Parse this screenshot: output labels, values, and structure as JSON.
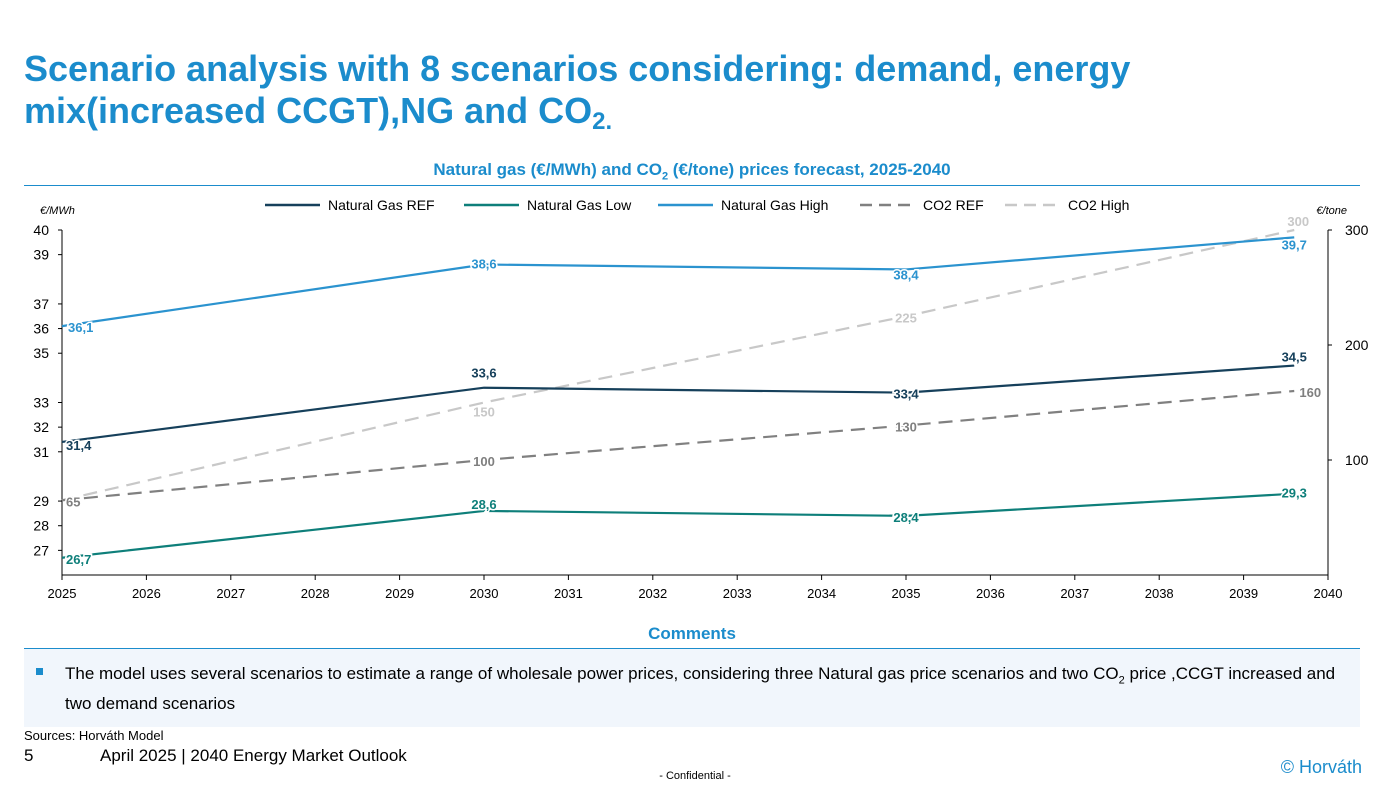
{
  "title": {
    "main": "Scenario analysis with 8 scenarios considering: demand, energy mix(increased CCGT),NG and CO",
    "sub": "2.",
    "chart_title_pre": "Natural gas (€/MWh) and CO",
    "chart_title_sub": "2",
    "chart_title_post": " (€/tone) prices forecast, 2025-2040"
  },
  "chart_data": {
    "type": "line",
    "title": "Natural gas (€/MWh) and CO2 (€/tone) prices forecast, 2025-2040",
    "ylabel": "€/MWh",
    "y2label": "€/tone",
    "x": [
      2025,
      2026,
      2027,
      2028,
      2029,
      2030,
      2031,
      2032,
      2033,
      2034,
      2035,
      2036,
      2037,
      2038,
      2039,
      2040
    ],
    "ylim": [
      26,
      40
    ],
    "y2lim": [
      0,
      300
    ],
    "yticks": [
      27,
      28,
      29,
      31,
      32,
      33,
      35,
      36,
      37,
      39,
      40
    ],
    "y2ticks": [
      100,
      200,
      300
    ],
    "legend_position": "top",
    "grid": false,
    "series": [
      {
        "name": "Natural Gas REF",
        "axis": "left",
        "style": "solid",
        "color": "#16405b",
        "points": [
          [
            2025,
            31.4
          ],
          [
            2030,
            33.6
          ],
          [
            2035,
            33.4
          ],
          [
            2039.6,
            34.5
          ]
        ],
        "labels": [
          "31,4",
          "33,6",
          "33,4",
          "34,5"
        ]
      },
      {
        "name": "Natural Gas Low",
        "axis": "left",
        "style": "solid",
        "color": "#0e7f7a",
        "points": [
          [
            2025,
            26.7
          ],
          [
            2030,
            28.6
          ],
          [
            2035,
            28.4
          ],
          [
            2039.6,
            29.3
          ]
        ],
        "labels": [
          "26,7",
          "28,6",
          "28,4",
          "29,3"
        ]
      },
      {
        "name": "Natural Gas High",
        "axis": "left",
        "style": "solid",
        "color": "#2b93cf",
        "points": [
          [
            2025,
            36.1
          ],
          [
            2030,
            38.6
          ],
          [
            2035,
            38.4
          ],
          [
            2039.6,
            39.7
          ]
        ],
        "labels": [
          "36,1",
          "38,6",
          "38,4",
          "39,7"
        ]
      },
      {
        "name": "CO2 REF",
        "axis": "right",
        "style": "dashed",
        "color": "#808080",
        "points": [
          [
            2025,
            65
          ],
          [
            2030,
            100
          ],
          [
            2035,
            130
          ],
          [
            2039.6,
            160
          ]
        ],
        "labels": [
          "65",
          "100",
          "130",
          "160"
        ]
      },
      {
        "name": "CO2 High",
        "axis": "right",
        "style": "dashed",
        "color": "#c8c8c8",
        "points": [
          [
            2025,
            65
          ],
          [
            2030,
            150
          ],
          [
            2035,
            225
          ],
          [
            2039.6,
            300
          ]
        ],
        "labels": [
          "",
          "150",
          "225",
          "300"
        ]
      }
    ]
  },
  "comments": {
    "heading": "Comments",
    "text_pre": "The model uses several scenarios to estimate a range of wholesale power prices, considering three Natural gas price scenarios and two CO",
    "text_sub": "2",
    "text_post": " price ,CCGT increased and two demand scenarios"
  },
  "footer": {
    "sources": "Sources: Horváth Model",
    "page_number": "5",
    "date_title": "April 2025 | 2040 Energy Market Outlook",
    "confidential": "- Confidential -",
    "copyright": "© Horváth"
  },
  "colors": {
    "accent": "#1b8ccc",
    "comment_bg": "#f1f6fc"
  }
}
